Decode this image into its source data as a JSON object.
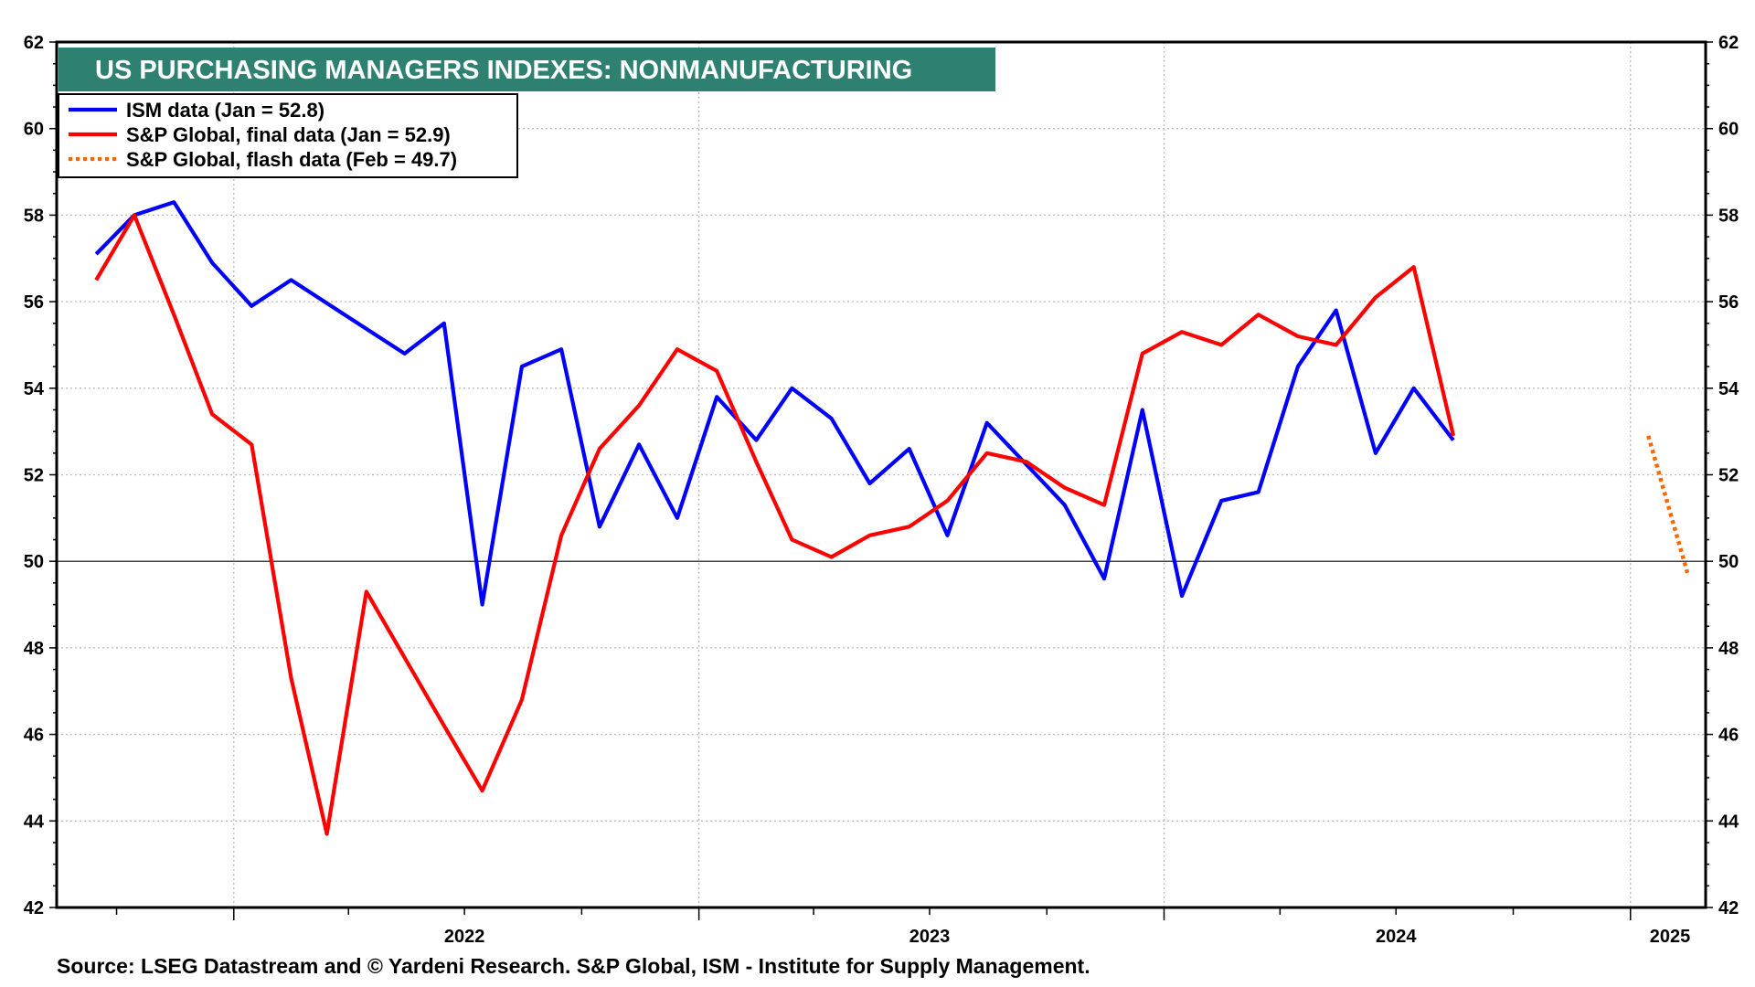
{
  "chart_data": {
    "type": "line",
    "title": "US PURCHASING MANAGERS INDEXES: NONMANUFACTURING",
    "xlabel": "",
    "ylabel": "",
    "ylim": [
      42,
      62
    ],
    "yticks": [
      42,
      44,
      46,
      48,
      50,
      52,
      54,
      56,
      58,
      60,
      62
    ],
    "xlim": [
      "2021-08-15",
      "2025-03-01"
    ],
    "xtick_labels": [
      {
        "label": "2022",
        "center": "2022-07-01"
      },
      {
        "label": "2023",
        "center": "2023-07-01"
      },
      {
        "label": "2024",
        "center": "2024-07-01"
      },
      {
        "label": "2025",
        "center": "2025-02-01"
      }
    ],
    "reference_line": 50,
    "grid": true,
    "legend_position": "top-left",
    "colors": {
      "ism": "#0000ff",
      "sp_final": "#ff0000",
      "sp_flash": "#ff6600",
      "title_bg": "#2e8070"
    },
    "series": [
      {
        "name": "ISM data (Jan = 52.8)",
        "style": "solid",
        "color": "#0000ff",
        "x": [
          "2021-09",
          "2021-10",
          "2021-11",
          "2021-12",
          "2022-01",
          "2022-02",
          "2022-03",
          "2022-04",
          "2022-05",
          "2022-06",
          "2022-07",
          "2022-08",
          "2022-09",
          "2022-10",
          "2022-11",
          "2022-12",
          "2023-01",
          "2023-02",
          "2023-03",
          "2023-04",
          "2023-05",
          "2023-06",
          "2023-07",
          "2023-08",
          "2023-09",
          "2023-10",
          "2023-11",
          "2023-12",
          "2024-01",
          "2024-02",
          "2024-03",
          "2024-04",
          "2024-05",
          "2024-06",
          "2024-07",
          "2024-08",
          "2024-09",
          "2024-10",
          "2024-11",
          "2024-12",
          "2025-01"
        ],
        "values": [
          57.1,
          58.0,
          58.3,
          56.9,
          55.9,
          56.5,
          null,
          null,
          54.8,
          55.5,
          49.0,
          54.5,
          54.9,
          50.8,
          52.7,
          51.0,
          53.8,
          52.8,
          54.0,
          53.3,
          51.8,
          52.6,
          50.6,
          53.2,
          null,
          51.3,
          49.6,
          53.5,
          49.2,
          51.4,
          51.6,
          54.5,
          55.8,
          52.5,
          54.0,
          52.8,
          null,
          null,
          null,
          null,
          null
        ]
      },
      {
        "name": "S&P Global, final data (Jan = 52.9)",
        "style": "solid",
        "color": "#ff0000",
        "x": [
          "2021-09",
          "2021-10",
          "2021-11",
          "2021-12",
          "2022-01",
          "2022-02",
          "2022-03",
          "2022-04",
          "2022-05",
          "2022-06",
          "2022-07",
          "2022-08",
          "2022-09",
          "2022-10",
          "2022-11",
          "2022-12",
          "2023-01",
          "2023-02",
          "2023-03",
          "2023-04",
          "2023-05",
          "2023-06",
          "2023-07",
          "2023-08",
          "2023-09",
          "2023-10",
          "2023-11",
          "2023-12",
          "2024-01",
          "2024-02",
          "2024-03",
          "2024-04",
          "2024-05",
          "2024-06",
          "2024-07",
          "2024-08",
          "2024-09",
          "2024-10",
          "2024-11",
          "2024-12",
          "2025-01"
        ],
        "values": [
          56.5,
          58.0,
          55.7,
          53.4,
          52.7,
          47.3,
          43.7,
          49.3,
          null,
          46.2,
          44.7,
          46.8,
          50.6,
          52.6,
          53.6,
          54.9,
          54.4,
          52.3,
          50.5,
          50.1,
          50.6,
          50.8,
          51.4,
          52.5,
          52.3,
          51.7,
          51.3,
          54.8,
          55.3,
          55.0,
          55.7,
          55.2,
          55.0,
          56.1,
          56.8,
          52.9,
          null,
          null,
          null,
          null,
          null
        ]
      },
      {
        "name": "S&P Global, flash data (Feb = 49.7)",
        "style": "dotted",
        "color": "#ff6600",
        "x": [
          "2025-01",
          "2025-02"
        ],
        "values": [
          52.9,
          49.7
        ]
      }
    ]
  },
  "source": "Source: LSEG Datastream and © Yardeni Research. S&P Global, ISM - Institute for Supply Management."
}
